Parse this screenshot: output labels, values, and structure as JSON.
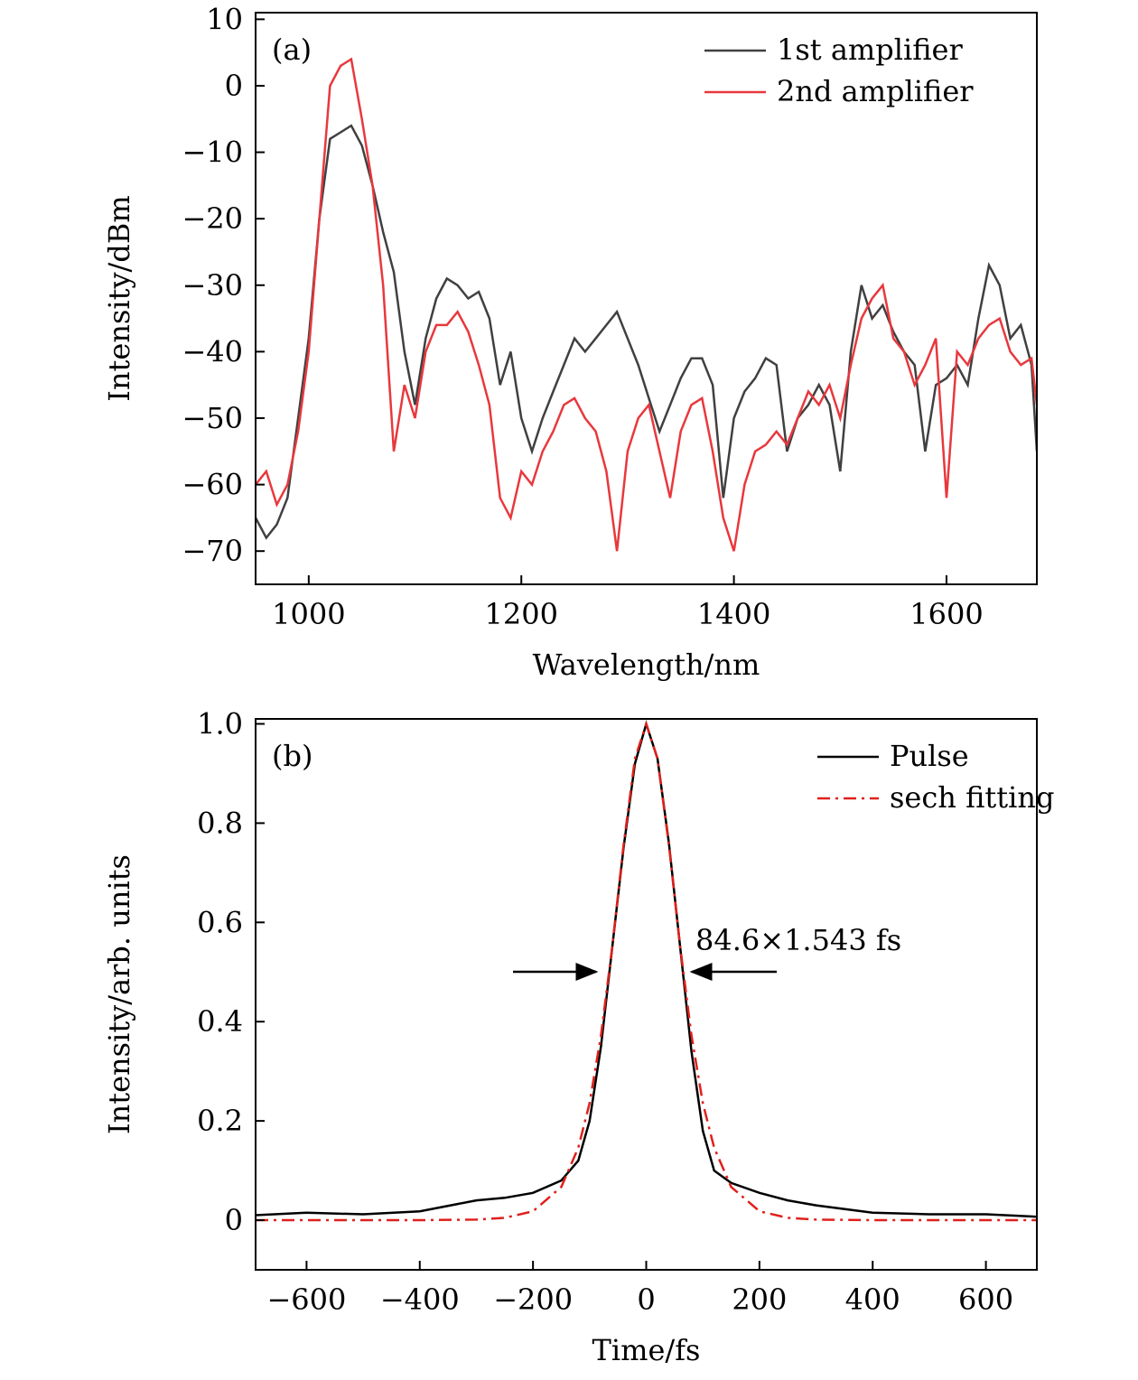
{
  "chart_data": [
    {
      "type": "line",
      "panel_label": "(a)",
      "x_label": "Wavelength/nm",
      "y_label": "Intensity/dBm",
      "xlim": [
        950,
        1685
      ],
      "ylim": [
        -75,
        11
      ],
      "xticks": [
        1000,
        1200,
        1400,
        1600
      ],
      "yticks": [
        {
          "value": -70,
          "label": "−70"
        },
        {
          "value": -60,
          "label": "−60"
        },
        {
          "value": -50,
          "label": "−50"
        },
        {
          "value": -40,
          "label": "−40"
        },
        {
          "value": -30,
          "label": "−30"
        },
        {
          "value": -20,
          "label": "−20"
        },
        {
          "value": -10,
          "label": "−10"
        },
        0,
        10
      ],
      "legend": "upper right",
      "x": [
        950,
        960,
        970,
        980,
        990,
        1000,
        1010,
        1020,
        1030,
        1040,
        1050,
        1060,
        1070,
        1080,
        1090,
        1100,
        1110,
        1120,
        1130,
        1140,
        1150,
        1160,
        1170,
        1180,
        1190,
        1200,
        1210,
        1220,
        1230,
        1240,
        1250,
        1260,
        1270,
        1280,
        1290,
        1300,
        1310,
        1320,
        1330,
        1340,
        1350,
        1360,
        1370,
        1380,
        1390,
        1400,
        1410,
        1420,
        1430,
        1440,
        1450,
        1460,
        1470,
        1480,
        1490,
        1500,
        1510,
        1520,
        1530,
        1540,
        1550,
        1560,
        1570,
        1580,
        1590,
        1600,
        1610,
        1620,
        1630,
        1640,
        1650,
        1660,
        1670,
        1680,
        1685
      ],
      "series": [
        {
          "name": "1st amplifier",
          "color": "#404040",
          "linestyle": "solid",
          "values": [
            -65,
            -68,
            -66,
            -62,
            -50,
            -38,
            -20,
            -8,
            -7,
            -6,
            -9,
            -15,
            -22,
            -28,
            -40,
            -48,
            -38,
            -32,
            -29,
            -30,
            -32,
            -31,
            -35,
            -45,
            -40,
            -50,
            -55,
            -50,
            -46,
            -42,
            -38,
            -40,
            -38,
            -36,
            -34,
            -38,
            -42,
            -47,
            -52,
            -48,
            -44,
            -41,
            -41,
            -45,
            -62,
            -50,
            -46,
            -44,
            -41,
            -42,
            -55,
            -50,
            -48,
            -45,
            -48,
            -58,
            -40,
            -30,
            -35,
            -33,
            -37,
            -40,
            -42,
            -55,
            -45,
            -44,
            -42,
            -45,
            -35,
            -27,
            -30,
            -38,
            -36,
            -42,
            -55
          ]
        },
        {
          "name": "2nd amplifier",
          "color": "#e8383d",
          "linestyle": "solid",
          "values": [
            -60,
            -58,
            -63,
            -60,
            -52,
            -40,
            -20,
            0,
            3,
            4,
            -5,
            -15,
            -30,
            -55,
            -45,
            -50,
            -40,
            -36,
            -36,
            -34,
            -37,
            -42,
            -48,
            -62,
            -65,
            -58,
            -60,
            -55,
            -52,
            -48,
            -47,
            -50,
            -52,
            -58,
            -70,
            -55,
            -50,
            -48,
            -55,
            -62,
            -52,
            -48,
            -47,
            -55,
            -65,
            -70,
            -60,
            -55,
            -54,
            -52,
            -54,
            -50,
            -46,
            -48,
            -45,
            -50,
            -42,
            -35,
            -32,
            -30,
            -38,
            -40,
            -45,
            -42,
            -38,
            -62,
            -40,
            -42,
            -38,
            -36,
            -35,
            -40,
            -42,
            -41,
            -48
          ]
        }
      ]
    },
    {
      "type": "line",
      "panel_label": "(b)",
      "x_label": "Time/fs",
      "y_label": "Intensity/arb. units",
      "xlim": [
        -690,
        690
      ],
      "ylim": [
        -0.1,
        1.01
      ],
      "xticks": [
        {
          "value": -600,
          "label": "−600"
        },
        {
          "value": -400,
          "label": "−400"
        },
        {
          "value": -200,
          "label": "−200"
        },
        0,
        200,
        400,
        600
      ],
      "yticks": [
        0,
        0.2,
        0.4,
        0.6,
        0.8,
        {
          "value": 1,
          "label": "1.0"
        }
      ],
      "legend": "upper right",
      "annotation": "84.6×1.543 fs",
      "x": [
        -690,
        -600,
        -500,
        -400,
        -300,
        -250,
        -200,
        -150,
        -120,
        -100,
        -80,
        -60,
        -40,
        -20,
        0,
        20,
        40,
        60,
        80,
        100,
        120,
        150,
        200,
        250,
        300,
        400,
        500,
        600,
        690
      ],
      "series": [
        {
          "name": "Pulse",
          "color": "#000000",
          "linestyle": "solid",
          "values": [
            0.01,
            0.015,
            0.012,
            0.018,
            0.04,
            0.045,
            0.055,
            0.08,
            0.12,
            0.2,
            0.35,
            0.55,
            0.75,
            0.92,
            1,
            0.93,
            0.76,
            0.55,
            0.34,
            0.18,
            0.1,
            0.075,
            0.055,
            0.04,
            0.03,
            0.015,
            0.012,
            0.012,
            0.007
          ]
        },
        {
          "name": "sech fitting",
          "color": "#e0201c",
          "linestyle": "dashdot",
          "values": [
            0,
            0,
            0,
            0.0001,
            0.0012,
            0.0046,
            0.018,
            0.067,
            0.146,
            0.236,
            0.372,
            0.551,
            0.756,
            0.93,
            1,
            0.93,
            0.756,
            0.551,
            0.372,
            0.236,
            0.146,
            0.067,
            0.018,
            0.0046,
            0.0012,
            0.0001,
            0,
            0,
            0
          ]
        }
      ]
    }
  ]
}
